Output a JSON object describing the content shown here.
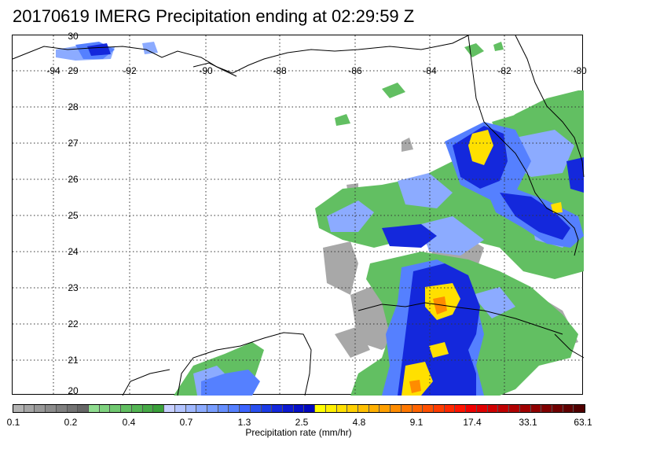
{
  "title": "20170619 IMERG Precipitation ending at 02:29:59 Z",
  "map": {
    "lon_labels": [
      "-94",
      "-92",
      "-90",
      "-88",
      "-86",
      "-84",
      "-82",
      "-80"
    ],
    "lat_labels": [
      "30",
      "29",
      "28",
      "27",
      "26",
      "25",
      "24",
      "23",
      "22",
      "21",
      "20"
    ],
    "coastline_color": "#000000",
    "grid_style": "dotted"
  },
  "colorbar": {
    "tick_labels": [
      "0.1",
      "0.2",
      "0.4",
      "0.7",
      "1.3",
      "2.5",
      "4.8",
      "9.1",
      "17.4",
      "33.1",
      "63.1"
    ],
    "label": "Precipitation rate (mm/hr)",
    "colors": [
      "#b3b3b3",
      "#a6a6a6",
      "#999999",
      "#8c8c8c",
      "#808080",
      "#737373",
      "#666666",
      "#8fdc8f",
      "#7fd27f",
      "#70c870",
      "#62bf62",
      "#54b554",
      "#47aa47",
      "#3aa03a",
      "#c8d0ff",
      "#b3c4ff",
      "#a0b8ff",
      "#8cabff",
      "#789dff",
      "#668fff",
      "#5580ff",
      "#3c64ff",
      "#2a50f0",
      "#1c3ce6",
      "#1428dc",
      "#0c1ad2",
      "#0610c8",
      "#0008be",
      "#ffff00",
      "#fff000",
      "#ffe000",
      "#ffd000",
      "#ffc000",
      "#ffb000",
      "#ffa000",
      "#ff8c00",
      "#ff7800",
      "#ff6400",
      "#ff5000",
      "#ff3c00",
      "#ff2800",
      "#ff1400",
      "#f00000",
      "#e00000",
      "#d00000",
      "#c00000",
      "#b00000",
      "#a00000",
      "#900000",
      "#800000",
      "#700000",
      "#600000",
      "#500000"
    ]
  }
}
